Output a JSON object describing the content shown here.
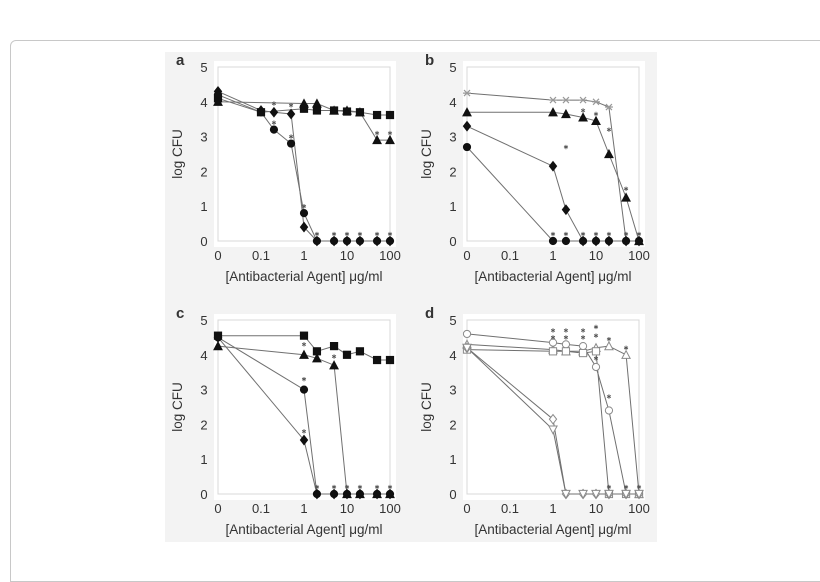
{
  "chart_data": [
    {
      "panel_label": "a",
      "type": "line",
      "xlabel": "[Antibacterial Agent] μg/ml",
      "ylabel": "log CFU",
      "x_scale": "log (0 plotted at left edge)",
      "x_ticks": [
        "0",
        "0.1",
        "1",
        "10",
        "100"
      ],
      "y_ticks": [
        "0",
        "1",
        "2",
        "3",
        "4",
        "5"
      ],
      "ylim": [
        0,
        5
      ],
      "series": [
        {
          "marker": "square-filled",
          "points": [
            [
              0,
              4.1
            ],
            [
              0.1,
              3.7
            ],
            [
              1,
              3.8
            ],
            [
              2,
              3.75
            ],
            [
              5,
              3.75
            ],
            [
              10,
              3.72
            ],
            [
              20,
              3.7
            ],
            [
              50,
              3.62
            ],
            [
              100,
              3.62
            ]
          ]
        },
        {
          "marker": "triangle-filled",
          "points": [
            [
              0,
              4.0
            ],
            [
              1,
              3.95
            ],
            [
              2,
              3.95
            ],
            [
              5,
              3.75
            ],
            [
              10,
              3.75
            ],
            [
              20,
              3.7
            ],
            [
              50,
              2.9
            ],
            [
              100,
              2.9
            ]
          ]
        },
        {
          "marker": "diamond-filled",
          "points": [
            [
              0,
              4.3
            ],
            [
              0.1,
              3.75
            ],
            [
              0.2,
              3.7
            ],
            [
              0.5,
              3.65
            ],
            [
              1,
              0.4
            ],
            [
              2,
              0
            ],
            [
              5,
              0
            ],
            [
              10,
              0
            ],
            [
              20,
              0
            ],
            [
              50,
              0
            ],
            [
              100,
              0
            ]
          ]
        },
        {
          "marker": "circle-filled",
          "points": [
            [
              0,
              4.2
            ],
            [
              0.1,
              3.7
            ],
            [
              0.2,
              3.2
            ],
            [
              0.5,
              2.8
            ],
            [
              1,
              0.8
            ],
            [
              2,
              0
            ],
            [
              5,
              0
            ],
            [
              10,
              0
            ],
            [
              20,
              0
            ],
            [
              50,
              0
            ],
            [
              100,
              0
            ]
          ]
        }
      ],
      "significance_marks": [
        [
          0.2,
          3.95
        ],
        [
          0.5,
          3.9
        ],
        [
          0.2,
          3.4
        ],
        [
          0.5,
          3.0
        ],
        [
          1,
          1.0
        ],
        [
          2,
          0.2
        ],
        [
          5,
          0.2
        ],
        [
          10,
          0.2
        ],
        [
          20,
          0.2
        ],
        [
          50,
          0.2
        ],
        [
          100,
          0.2
        ],
        [
          50,
          3.1
        ],
        [
          100,
          3.1
        ]
      ]
    },
    {
      "panel_label": "b",
      "type": "line",
      "xlabel": "[Antibacterial Agent] μg/ml",
      "ylabel": "log CFU",
      "x_scale": "log (0 plotted at left edge)",
      "x_ticks": [
        "0",
        "0.1",
        "1",
        "10",
        "100"
      ],
      "y_ticks": [
        "0",
        "1",
        "2",
        "3",
        "4",
        "5"
      ],
      "ylim": [
        0,
        5
      ],
      "series": [
        {
          "marker": "asterisk-gray",
          "points": [
            [
              0,
              4.25
            ],
            [
              1,
              4.05
            ],
            [
              2,
              4.05
            ],
            [
              5,
              4.05
            ],
            [
              10,
              4.0
            ],
            [
              20,
              3.85
            ],
            [
              50,
              0
            ],
            [
              100,
              0
            ]
          ]
        },
        {
          "marker": "triangle-filled",
          "points": [
            [
              0,
              3.7
            ],
            [
              1,
              3.7
            ],
            [
              2,
              3.65
            ],
            [
              5,
              3.55
            ],
            [
              10,
              3.45
            ],
            [
              20,
              2.5
            ],
            [
              50,
              1.25
            ],
            [
              100,
              0
            ]
          ]
        },
        {
          "marker": "diamond-filled",
          "points": [
            [
              0,
              3.3
            ],
            [
              1,
              2.15
            ],
            [
              2,
              0.9
            ],
            [
              5,
              0
            ],
            [
              10,
              0
            ],
            [
              20,
              0
            ],
            [
              50,
              0
            ],
            [
              100,
              0
            ]
          ]
        },
        {
          "marker": "circle-filled",
          "points": [
            [
              0,
              2.7
            ],
            [
              1,
              0
            ],
            [
              2,
              0
            ],
            [
              5,
              0
            ],
            [
              10,
              0
            ],
            [
              20,
              0
            ],
            [
              50,
              0
            ],
            [
              100,
              0
            ]
          ]
        }
      ],
      "significance_marks": [
        [
          5,
          3.75
        ],
        [
          10,
          3.65
        ],
        [
          20,
          3.2
        ],
        [
          2,
          2.7
        ],
        [
          50,
          1.5
        ],
        [
          1,
          0.2
        ],
        [
          2,
          0.2
        ],
        [
          5,
          0.2
        ],
        [
          10,
          0.2
        ],
        [
          20,
          0.2
        ],
        [
          50,
          0.2
        ],
        [
          100,
          0.2
        ]
      ]
    },
    {
      "panel_label": "c",
      "type": "line",
      "xlabel": "[Antibacterial Agent] μg/ml",
      "ylabel": "log CFU",
      "x_scale": "log (0 plotted at left edge)",
      "x_ticks": [
        "0",
        "0.1",
        "1",
        "10",
        "100"
      ],
      "y_ticks": [
        "0",
        "1",
        "2",
        "3",
        "4",
        "5"
      ],
      "ylim": [
        0,
        5
      ],
      "series": [
        {
          "marker": "square-filled",
          "points": [
            [
              0,
              4.55
            ],
            [
              1,
              4.55
            ],
            [
              2,
              4.1
            ],
            [
              5,
              4.25
            ],
            [
              10,
              4.0
            ],
            [
              20,
              4.1
            ],
            [
              50,
              3.85
            ],
            [
              100,
              3.85
            ]
          ]
        },
        {
          "marker": "triangle-filled",
          "points": [
            [
              0,
              4.25
            ],
            [
              1,
              4.0
            ],
            [
              2,
              3.9
            ],
            [
              5,
              3.7
            ],
            [
              10,
              0
            ],
            [
              20,
              0
            ],
            [
              50,
              0
            ],
            [
              100,
              0
            ]
          ]
        },
        {
          "marker": "circle-filled",
          "points": [
            [
              0,
              4.5
            ],
            [
              1,
              3.0
            ],
            [
              2,
              0
            ],
            [
              5,
              0
            ],
            [
              10,
              0
            ],
            [
              20,
              0
            ],
            [
              50,
              0
            ],
            [
              100,
              0
            ]
          ]
        },
        {
          "marker": "diamond-filled",
          "points": [
            [
              0,
              4.5
            ],
            [
              1,
              1.55
            ],
            [
              2,
              0
            ],
            [
              5,
              0
            ],
            [
              10,
              0
            ],
            [
              20,
              0
            ],
            [
              50,
              0
            ],
            [
              100,
              0
            ]
          ]
        }
      ],
      "significance_marks": [
        [
          1,
          4.3
        ],
        [
          5,
          3.95
        ],
        [
          1,
          3.3
        ],
        [
          1,
          1.8
        ],
        [
          2,
          0.2
        ],
        [
          5,
          0.2
        ],
        [
          10,
          0.2
        ],
        [
          20,
          0.2
        ],
        [
          50,
          0.2
        ],
        [
          100,
          0.2
        ]
      ]
    },
    {
      "panel_label": "d",
      "type": "line",
      "xlabel": "[Antibacterial Agent] μg/ml",
      "ylabel": "log CFU",
      "x_scale": "log (0 plotted at left edge)",
      "x_ticks": [
        "0",
        "0.1",
        "1",
        "10",
        "100"
      ],
      "y_ticks": [
        "0",
        "1",
        "2",
        "3",
        "4",
        "5"
      ],
      "ylim": [
        0,
        5
      ],
      "series": [
        {
          "marker": "triangle-open",
          "points": [
            [
              0,
              4.3
            ],
            [
              1,
              4.15
            ],
            [
              2,
              4.1
            ],
            [
              5,
              4.1
            ],
            [
              10,
              4.2
            ],
            [
              20,
              4.25
            ],
            [
              50,
              4.0
            ],
            [
              100,
              0
            ]
          ]
        },
        {
          "marker": "circle-open",
          "points": [
            [
              0,
              4.6
            ],
            [
              1,
              4.35
            ],
            [
              2,
              4.3
            ],
            [
              5,
              4.25
            ],
            [
              10,
              3.65
            ],
            [
              20,
              2.4
            ],
            [
              50,
              0
            ],
            [
              100,
              0
            ]
          ]
        },
        {
          "marker": "square-open",
          "points": [
            [
              0,
              4.15
            ],
            [
              1,
              4.1
            ],
            [
              2,
              4.1
            ],
            [
              5,
              4.05
            ],
            [
              10,
              4.1
            ],
            [
              20,
              0
            ],
            [
              50,
              0
            ],
            [
              100,
              0
            ]
          ]
        },
        {
          "marker": "diamond-open",
          "points": [
            [
              0,
              4.2
            ],
            [
              1,
              2.15
            ],
            [
              2,
              0
            ],
            [
              5,
              0
            ],
            [
              10,
              0
            ],
            [
              20,
              0
            ],
            [
              50,
              0
            ],
            [
              100,
              0
            ]
          ]
        },
        {
          "marker": "triangle-down-open",
          "points": [
            [
              0,
              4.2
            ],
            [
              1,
              1.85
            ],
            [
              2,
              0
            ],
            [
              5,
              0
            ],
            [
              10,
              0
            ],
            [
              20,
              0
            ],
            [
              50,
              0
            ],
            [
              100,
              0
            ]
          ]
        }
      ],
      "significance_marks": [
        [
          1,
          4.7
        ],
        [
          2,
          4.7
        ],
        [
          5,
          4.7
        ],
        [
          10,
          4.8
        ],
        [
          1,
          4.5
        ],
        [
          2,
          4.5
        ],
        [
          5,
          4.5
        ],
        [
          10,
          4.55
        ],
        [
          20,
          4.45
        ],
        [
          50,
          4.2
        ],
        [
          10,
          3.9
        ],
        [
          20,
          2.8
        ],
        [
          20,
          0.2
        ],
        [
          50,
          0.2
        ],
        [
          100,
          0.2
        ]
      ]
    }
  ],
  "colors": {
    "line": "#707070",
    "marker": "#111111",
    "open_marker_stroke": "#8a8a8a",
    "asterisk": "#999999"
  }
}
